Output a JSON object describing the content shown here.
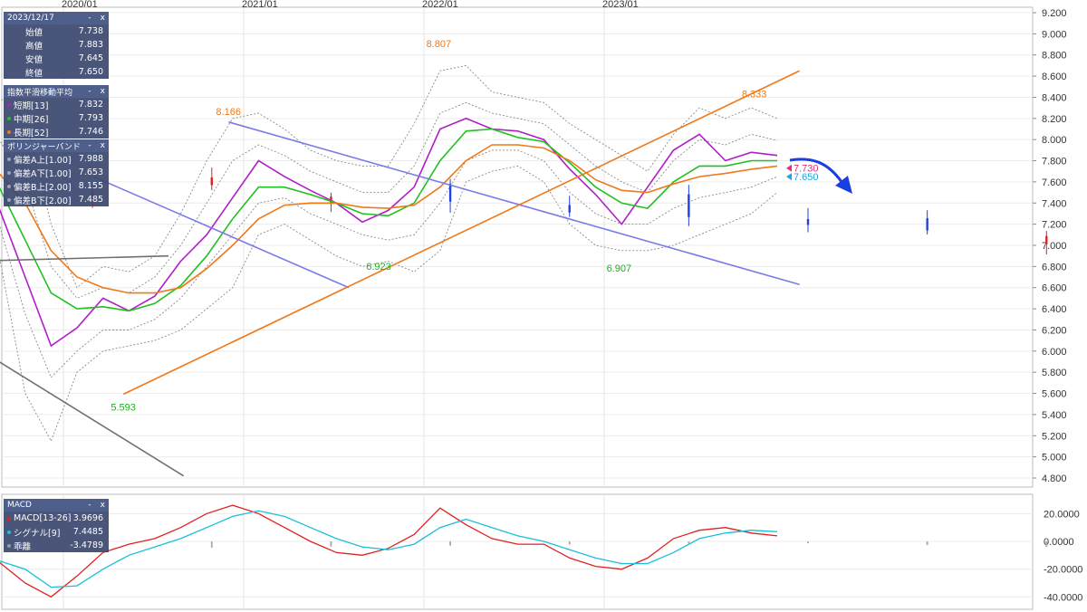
{
  "chart_data": [
    {
      "type": "candlestick",
      "x_labels": [
        "2020/01",
        "2021/01",
        "2022/01",
        "2023/01"
      ],
      "y_ticks": [
        "9.200",
        "9.000",
        "8.800",
        "8.600",
        "8.400",
        "8.200",
        "8.000",
        "7.800",
        "7.600",
        "7.400",
        "7.200",
        "7.000",
        "6.800",
        "6.600",
        "6.400",
        "6.200",
        "6.000",
        "5.800",
        "5.600",
        "5.400",
        "5.200",
        "5.000",
        "4.800"
      ],
      "ylim": [
        4.8,
        9.2
      ],
      "annotations": [
        {
          "text": "5.593",
          "x": "2020/05",
          "y": 5.593,
          "kind": "low"
        },
        {
          "text": "8.166",
          "x": "2020/12",
          "y": 8.166,
          "kind": "high"
        },
        {
          "text": "6.923",
          "x": "2021/10",
          "y": 6.923,
          "kind": "low"
        },
        {
          "text": "8.807",
          "x": "2022/02",
          "y": 8.807,
          "kind": "high"
        },
        {
          "text": "6.907",
          "x": "2023/02",
          "y": 6.907,
          "kind": "low"
        },
        {
          "text": "8.333",
          "x": "2023/11",
          "y": 8.333,
          "kind": "high"
        }
      ],
      "price_tags": [
        {
          "text": "7.730",
          "y": 7.73,
          "color": "#e0307a"
        },
        {
          "text": "7.650",
          "y": 7.65,
          "color": "#1ea7e0"
        }
      ],
      "series": [
        {
          "name": "短期[13]",
          "color": "#b01ec8",
          "values": [
            7.6,
            7.35,
            6.7,
            6.05,
            6.22,
            6.5,
            6.38,
            6.52,
            6.85,
            7.1,
            7.45,
            7.8,
            7.65,
            7.52,
            7.4,
            7.22,
            7.33,
            7.55,
            8.1,
            8.2,
            8.1,
            8.08,
            8.0,
            7.72,
            7.48,
            7.2,
            7.55,
            7.9,
            8.05,
            7.8,
            7.88,
            7.85
          ]
        },
        {
          "name": "中期[26]",
          "color": "#20c020",
          "values": [
            7.7,
            7.55,
            7.05,
            6.55,
            6.4,
            6.42,
            6.38,
            6.45,
            6.62,
            6.9,
            7.25,
            7.55,
            7.55,
            7.48,
            7.4,
            7.3,
            7.28,
            7.4,
            7.8,
            8.08,
            8.1,
            8.02,
            7.98,
            7.78,
            7.55,
            7.4,
            7.35,
            7.6,
            7.75,
            7.75,
            7.8,
            7.8
          ]
        },
        {
          "name": "長期[52]",
          "color": "#f07818",
          "values": [
            7.75,
            7.68,
            7.4,
            6.95,
            6.7,
            6.6,
            6.55,
            6.55,
            6.6,
            6.78,
            7.0,
            7.25,
            7.38,
            7.4,
            7.4,
            7.36,
            7.35,
            7.38,
            7.55,
            7.8,
            7.95,
            7.95,
            7.92,
            7.8,
            7.62,
            7.52,
            7.5,
            7.58,
            7.65,
            7.68,
            7.72,
            7.75
          ]
        }
      ],
      "bollinger": {
        "upper2": [
          8.2,
          8.4,
          8.2,
          7.2,
          6.6,
          6.8,
          6.75,
          6.9,
          7.3,
          7.8,
          8.2,
          8.25,
          8.1,
          7.9,
          7.8,
          7.75,
          7.75,
          8.15,
          8.65,
          8.7,
          8.45,
          8.4,
          8.35,
          8.15,
          8.0,
          7.85,
          7.7,
          8.05,
          8.3,
          8.2,
          8.3,
          8.2
        ],
        "lower2": [
          7.2,
          6.9,
          5.6,
          5.15,
          5.8,
          6.0,
          6.05,
          6.1,
          6.2,
          6.4,
          6.6,
          7.1,
          7.2,
          7.05,
          6.9,
          6.8,
          6.85,
          6.75,
          6.95,
          7.6,
          7.7,
          7.75,
          7.6,
          7.2,
          7.0,
          6.95,
          6.95,
          7.0,
          7.1,
          7.2,
          7.3,
          7.5
        ],
        "upper1": [
          7.95,
          8.0,
          7.6,
          6.8,
          6.5,
          6.6,
          6.55,
          6.7,
          7.0,
          7.4,
          7.8,
          7.95,
          7.85,
          7.7,
          7.6,
          7.5,
          7.5,
          7.75,
          8.25,
          8.35,
          8.25,
          8.2,
          8.15,
          7.95,
          7.75,
          7.6,
          7.5,
          7.8,
          8.0,
          7.95,
          8.05,
          7.99
        ],
        "lower1": [
          7.45,
          7.2,
          6.35,
          5.75,
          6.0,
          6.2,
          6.2,
          6.3,
          6.5,
          6.8,
          7.1,
          7.4,
          7.45,
          7.3,
          7.2,
          7.1,
          7.05,
          7.1,
          7.4,
          7.8,
          7.9,
          7.9,
          7.8,
          7.5,
          7.3,
          7.2,
          7.2,
          7.35,
          7.45,
          7.5,
          7.55,
          7.65
        ]
      },
      "trendlines": [
        {
          "color": "#7a7ae8",
          "from": {
            "x": "2020/03",
            "y": 7.65
          },
          "to": {
            "x": "2021/08",
            "y": 6.6
          }
        },
        {
          "color": "#7a7ae8",
          "from": {
            "x": "2020/12",
            "y": 8.166
          },
          "to": {
            "x": "2024/02",
            "y": 6.63
          }
        },
        {
          "color": "#f07818",
          "from": {
            "x": "2020/05",
            "y": 5.593
          },
          "to": {
            "x": "2024/02",
            "y": 8.65
          }
        },
        {
          "color": "#707070",
          "from": {
            "x": "2019/07",
            "y": 6.85
          },
          "to": {
            "x": "2020/08",
            "y": 6.9
          }
        },
        {
          "color": "#707070",
          "from": {
            "x": "2019/07",
            "y": 6.05
          },
          "to": {
            "x": "2020/09",
            "y": 4.82
          }
        }
      ],
      "legend_panels": [
        {
          "title": "2023/12/17",
          "rows": [
            {
              "label": "始値",
              "value": "7.738"
            },
            {
              "label": "高値",
              "value": "7.883"
            },
            {
              "label": "安値",
              "value": "7.645"
            },
            {
              "label": "終値",
              "value": "7.650"
            }
          ]
        },
        {
          "title": "指数平滑移動平均",
          "rows": [
            {
              "label": "短期[13]",
              "value": "7.832",
              "color": "#b01ec8"
            },
            {
              "label": "中期[26]",
              "value": "7.793",
              "color": "#20c020"
            },
            {
              "label": "長期[52]",
              "value": "7.746",
              "color": "#f07818"
            }
          ]
        },
        {
          "title": "ボリンジャーバンド",
          "rows": [
            {
              "label": "偏差A上[1.00]",
              "value": "7.988",
              "color": "#9aa2c0"
            },
            {
              "label": "偏差A下[1.00]",
              "value": "7.653",
              "color": "#9aa2c0"
            },
            {
              "label": "偏差B上[2.00]",
              "value": "8.155",
              "color": "#9aa2c0"
            },
            {
              "label": "偏差B下[2.00]",
              "value": "7.485",
              "color": "#9aa2c0"
            }
          ]
        }
      ],
      "panel_buttons": {
        "minimize": "-",
        "close": "x"
      }
    },
    {
      "type": "line",
      "title": "MACD",
      "y_ticks": [
        "20.0000",
        "0.0000",
        "-20.0000",
        "-40.0000"
      ],
      "ylim": [
        -45,
        30
      ],
      "series": [
        {
          "name": "MACD[13-26]",
          "color": "#e02020",
          "value": "3.9696",
          "values": [
            -20,
            -15,
            -30,
            -40,
            -25,
            -8,
            -2,
            2,
            10,
            20,
            26,
            20,
            10,
            0,
            -8,
            -10,
            -5,
            5,
            24,
            12,
            2,
            -2,
            -2,
            -12,
            -18,
            -20,
            -12,
            2,
            8,
            10,
            6,
            4
          ]
        },
        {
          "name": "シグナル[9]",
          "color": "#18c0d8",
          "value": "7.4485",
          "values": [
            -14,
            -14,
            -20,
            -33,
            -32,
            -20,
            -10,
            -4,
            2,
            10,
            18,
            22,
            18,
            10,
            2,
            -4,
            -6,
            -2,
            10,
            16,
            10,
            4,
            0,
            -6,
            -12,
            -16,
            -16,
            -8,
            2,
            6,
            8,
            7
          ]
        },
        {
          "name": "乖離",
          "color": "#9a9a9a",
          "value": "-3.4789",
          "values": [
            -6,
            -1,
            -10,
            -7,
            7,
            12,
            8,
            6,
            8,
            10,
            8,
            -2,
            -8,
            -10,
            -10,
            -6,
            1,
            7,
            14,
            -4,
            -8,
            -6,
            -2,
            -6,
            -6,
            -4,
            4,
            10,
            6,
            4,
            -2,
            -3
          ]
        }
      ]
    }
  ]
}
